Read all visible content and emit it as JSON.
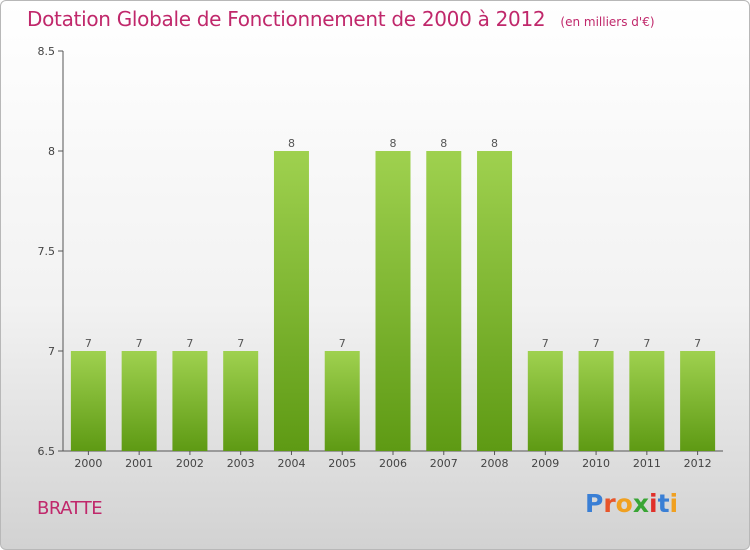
{
  "title": "Dotation Globale de Fonctionnement de 2000 à 2012",
  "unit": "(en milliers d'€)",
  "commune": "BRATTE",
  "logo": {
    "letters": [
      "P",
      "r",
      "o",
      "x",
      "i",
      "t",
      "i"
    ],
    "colors": [
      "#3a7fd5",
      "#e8552a",
      "#f0a020",
      "#39a535",
      "#e0302a",
      "#3a7fd5",
      "#f0a020"
    ]
  },
  "colors": {
    "accent": "#c0286b",
    "bar_light": "#9fd14f",
    "bar_dark": "#5e9a14"
  },
  "chart_data": {
    "type": "bar",
    "categories": [
      "2000",
      "2001",
      "2002",
      "2003",
      "2004",
      "2005",
      "2006",
      "2007",
      "2008",
      "2009",
      "2010",
      "2011",
      "2012"
    ],
    "values": [
      7,
      7,
      7,
      7,
      8,
      7,
      8,
      8,
      8,
      7,
      7,
      7,
      7
    ],
    "data_labels": [
      "7",
      "7",
      "7",
      "7",
      "8",
      "7",
      "8",
      "8",
      "8",
      "7",
      "7",
      "7",
      "7"
    ],
    "ylim": [
      6.5,
      8.5
    ],
    "yticks": [
      "6.5",
      "7",
      "7.5",
      "8",
      "8.5"
    ],
    "grid": false
  }
}
